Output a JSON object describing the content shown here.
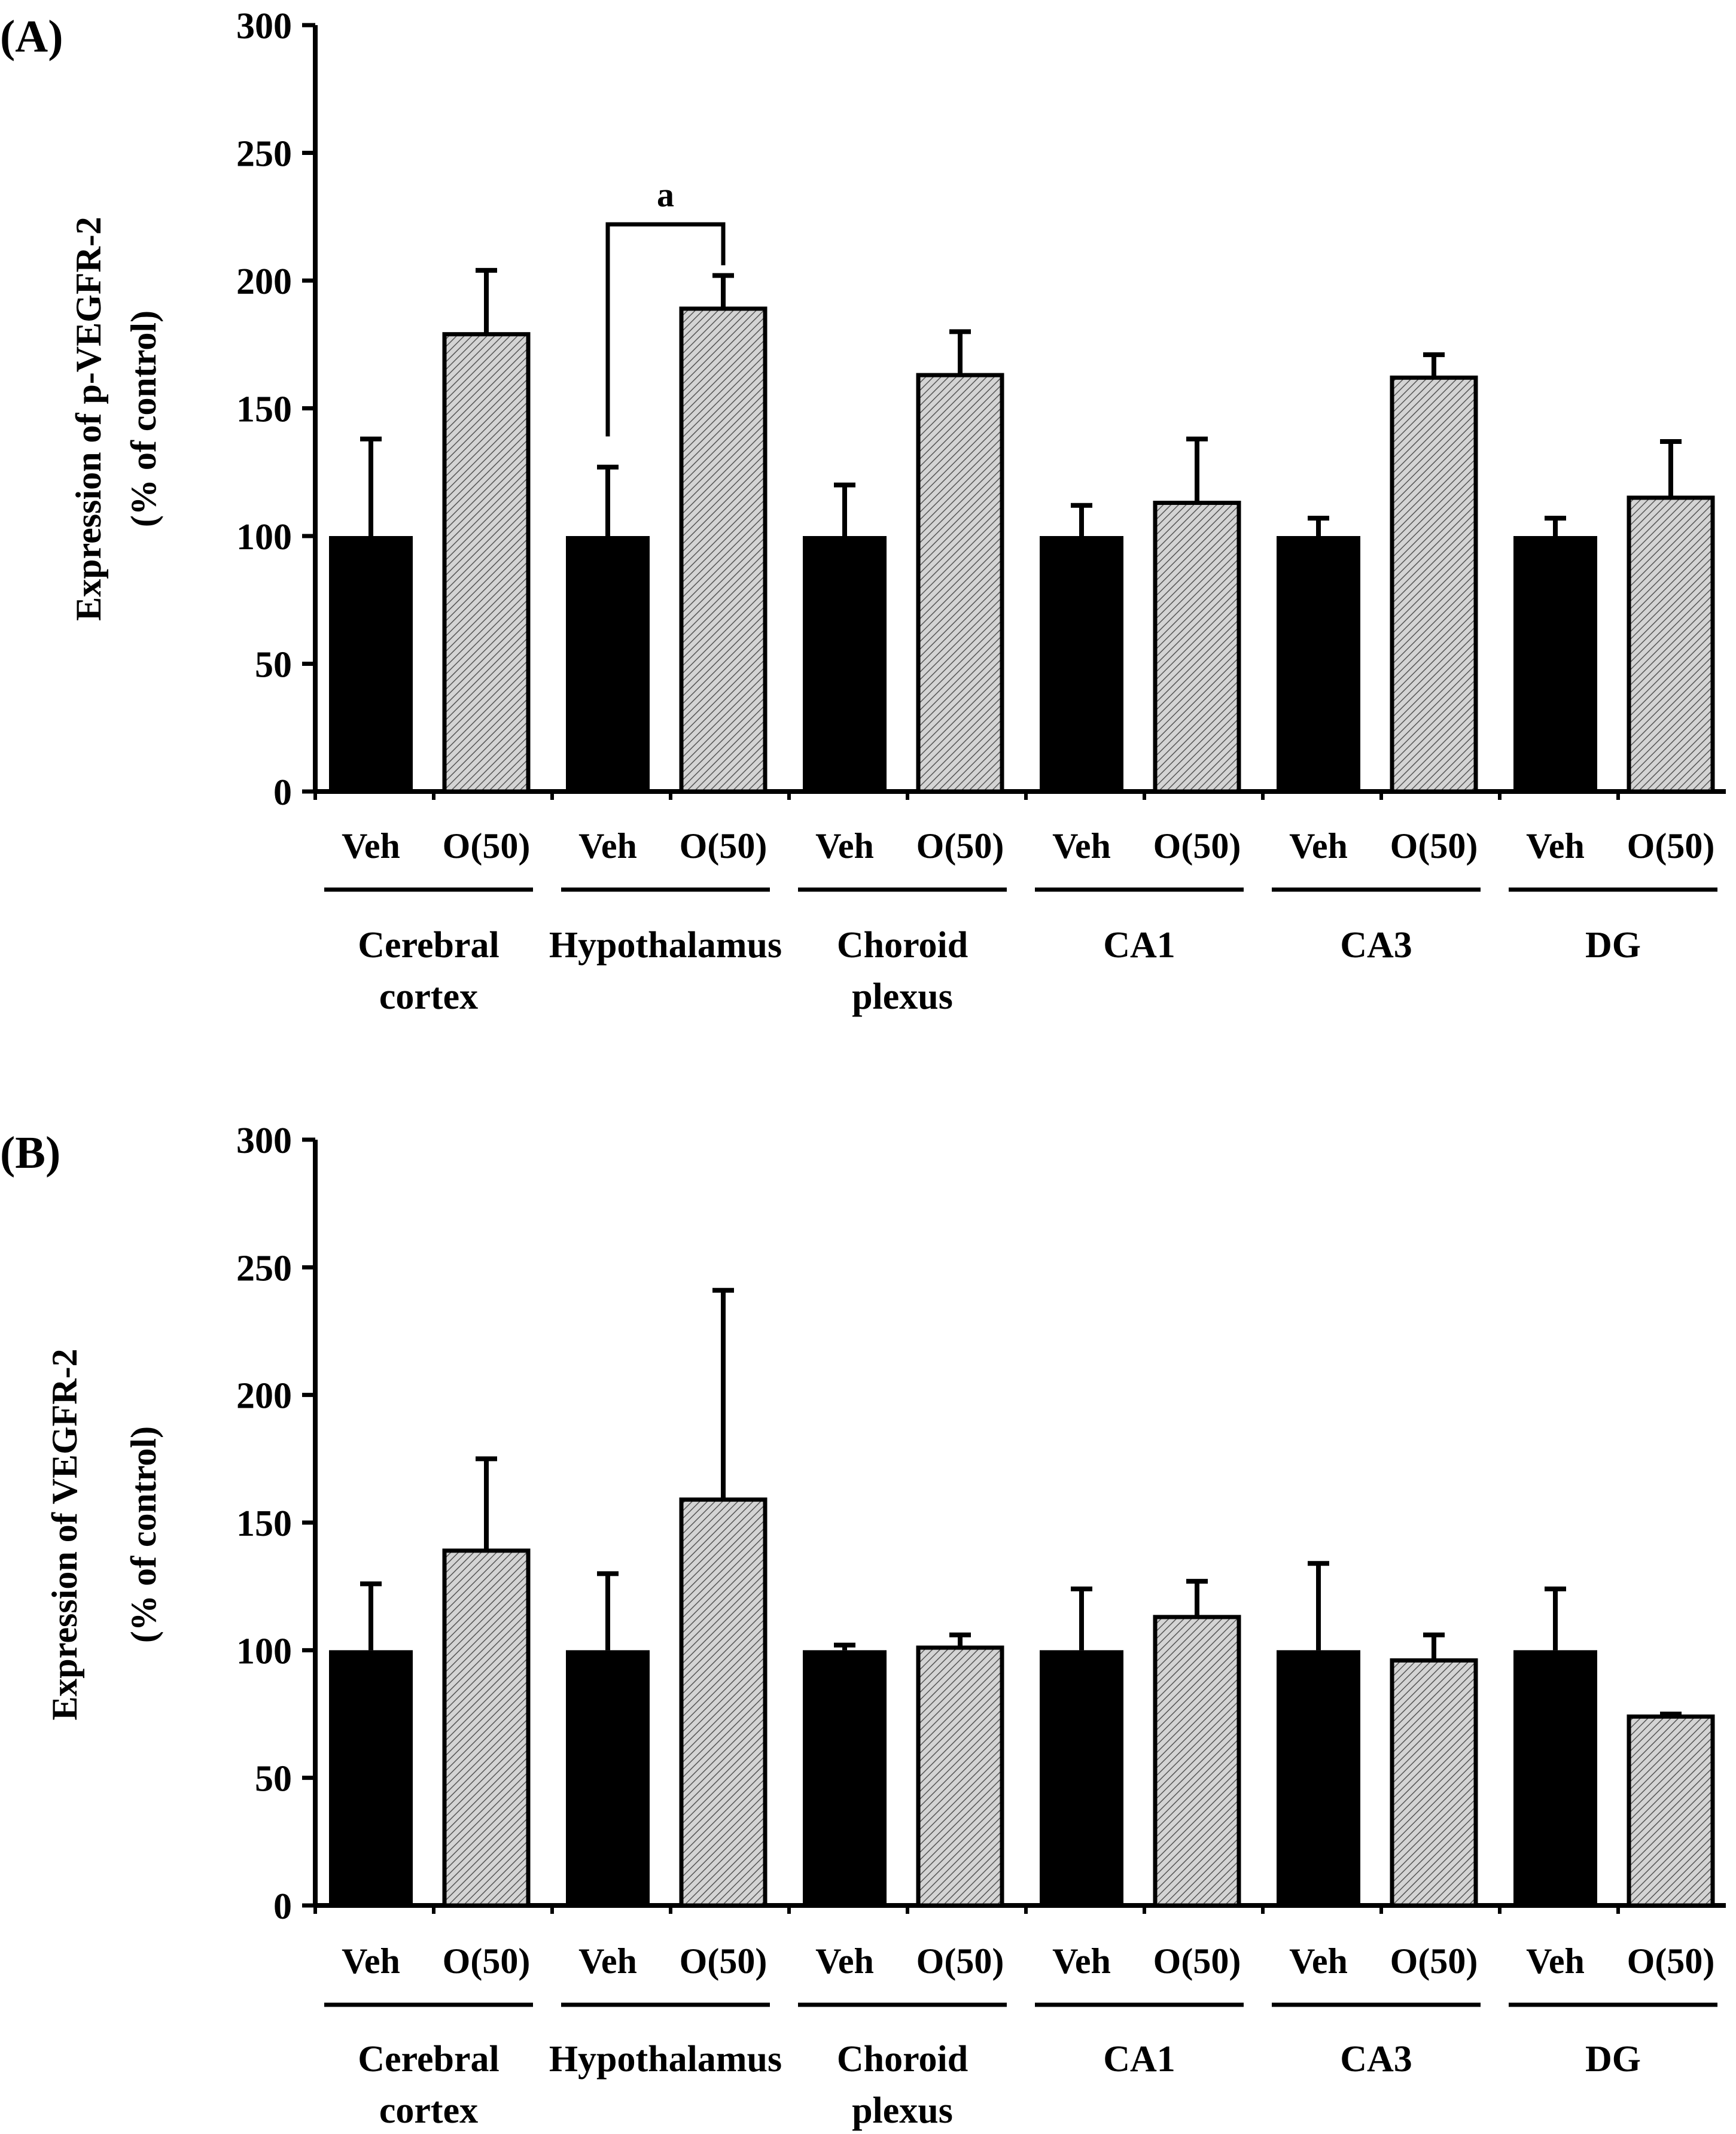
{
  "colors": {
    "veh_fill": "#000000",
    "o50_fill": "#d4d4d4",
    "o50_hatch": "#555555",
    "axis": "#000000",
    "background": "#ffffff"
  },
  "icons": {
    "significance_bracket": "significance-bracket-icon"
  },
  "chart_data": [
    {
      "panel_label": "(A)",
      "type": "bar",
      "ylabel_line1": "Expression of p-VEGFR-2",
      "ylabel_line2": "(% of control)",
      "ylim": [
        0,
        300
      ],
      "yticks": [
        "0",
        "50",
        "100",
        "150",
        "200",
        "250",
        "300"
      ],
      "groups": [
        {
          "label_lines": [
            "Cerebral",
            "cortex"
          ],
          "bar_labels": [
            "Veh",
            "O(50)"
          ]
        },
        {
          "label_lines": [
            "Hypothalamus"
          ],
          "bar_labels": [
            "Veh",
            "O(50)"
          ]
        },
        {
          "label_lines": [
            "Choroid",
            "plexus"
          ],
          "bar_labels": [
            "Veh",
            "O(50)"
          ]
        },
        {
          "label_lines": [
            "CA1"
          ],
          "bar_labels": [
            "Veh",
            "O(50)"
          ]
        },
        {
          "label_lines": [
            "CA3"
          ],
          "bar_labels": [
            "Veh",
            "O(50)"
          ]
        },
        {
          "label_lines": [
            "DG"
          ],
          "bar_labels": [
            "Veh",
            "O(50)"
          ]
        }
      ],
      "series": [
        {
          "name": "Veh",
          "values": [
            100,
            100,
            100,
            100,
            100,
            100
          ],
          "errors": [
            38,
            27,
            20,
            12,
            7,
            7
          ]
        },
        {
          "name": "O(50)",
          "values": [
            179,
            189,
            163,
            113,
            162,
            115
          ],
          "errors": [
            25,
            13,
            17,
            25,
            9,
            22
          ]
        }
      ],
      "annotation": {
        "text": "a",
        "from_group": 1,
        "from_series": 0,
        "to_group": 1,
        "to_series": 1,
        "bracket_level": 222
      }
    },
    {
      "panel_label": "(B)",
      "type": "bar",
      "ylabel_line1": "Expression of VEGFR-2",
      "ylabel_line2": "(% of control)",
      "ylim": [
        0,
        300
      ],
      "yticks": [
        "0",
        "50",
        "100",
        "150",
        "200",
        "250",
        "300"
      ],
      "groups": [
        {
          "label_lines": [
            "Cerebral",
            "cortex"
          ],
          "bar_labels": [
            "Veh",
            "O(50)"
          ]
        },
        {
          "label_lines": [
            "Hypothalamus"
          ],
          "bar_labels": [
            "Veh",
            "O(50)"
          ]
        },
        {
          "label_lines": [
            "Choroid",
            "plexus"
          ],
          "bar_labels": [
            "Veh",
            "O(50)"
          ]
        },
        {
          "label_lines": [
            "CA1"
          ],
          "bar_labels": [
            "Veh",
            "O(50)"
          ]
        },
        {
          "label_lines": [
            "CA3"
          ],
          "bar_labels": [
            "Veh",
            "O(50)"
          ]
        },
        {
          "label_lines": [
            "DG"
          ],
          "bar_labels": [
            "Veh",
            "O(50)"
          ]
        }
      ],
      "series": [
        {
          "name": "Veh",
          "values": [
            100,
            100,
            100,
            100,
            100,
            100
          ],
          "errors": [
            26,
            30,
            2,
            24,
            34,
            24
          ]
        },
        {
          "name": "O(50)",
          "values": [
            139,
            159,
            101,
            113,
            96,
            74
          ],
          "errors": [
            36,
            82,
            5,
            14,
            10,
            1
          ]
        }
      ],
      "annotation": null
    }
  ]
}
